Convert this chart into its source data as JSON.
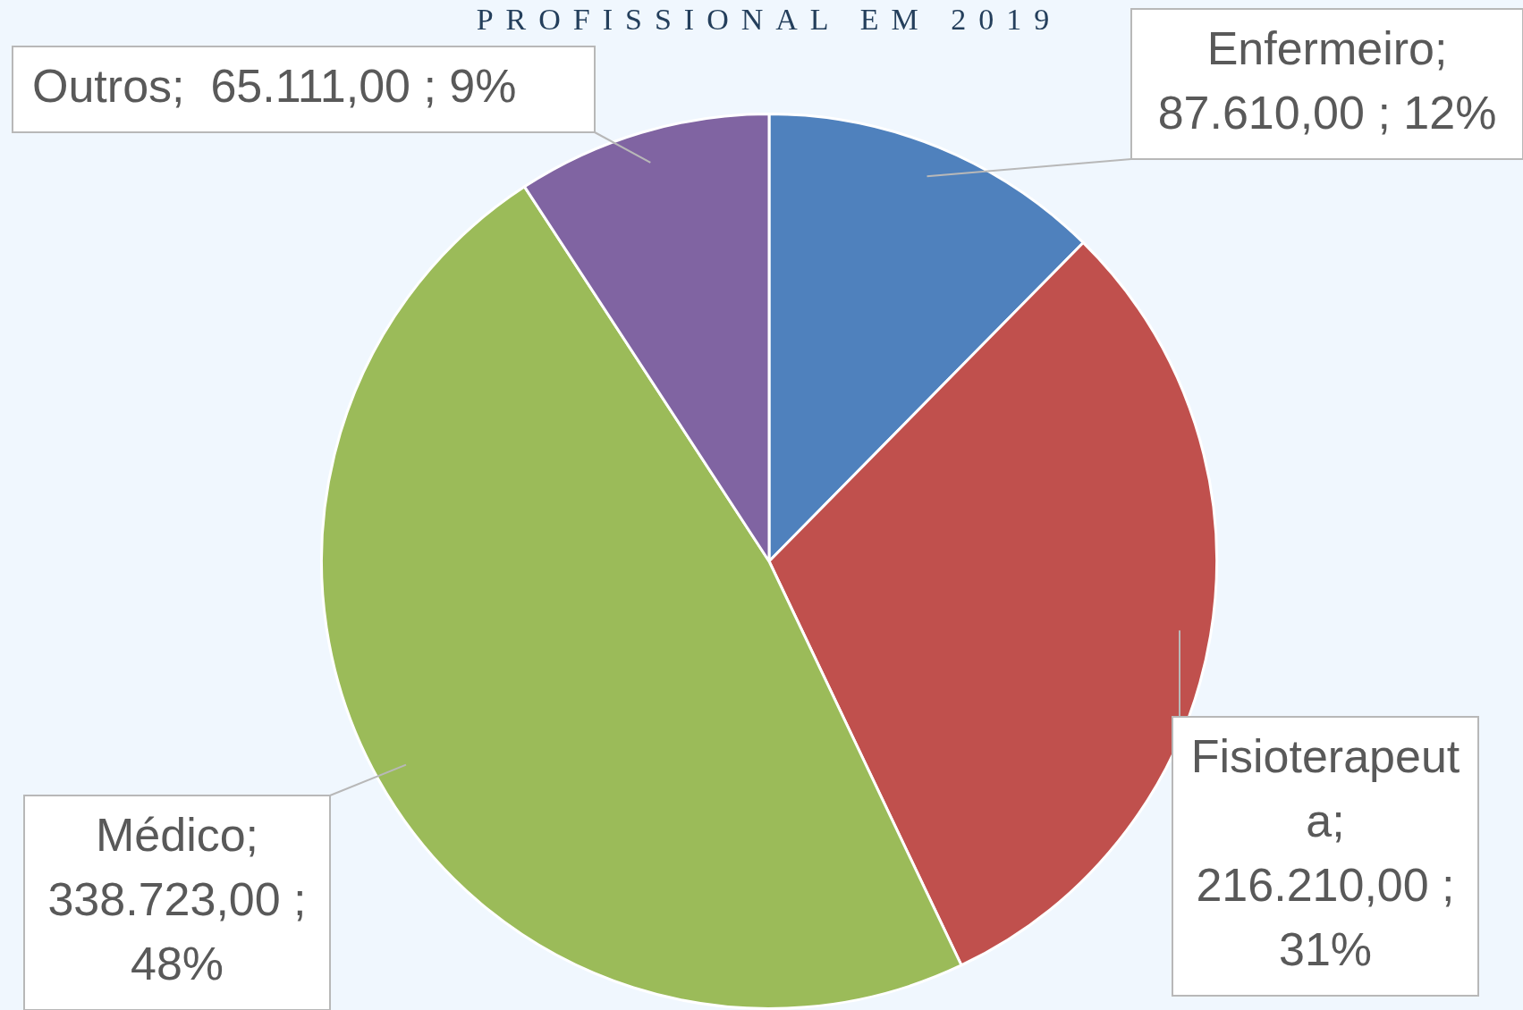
{
  "chart_data": {
    "type": "pie",
    "title": "PROFISSIONAL EM 2019",
    "categories": [
      "Enfermeiro",
      "Fisioterapeuta",
      "Médico",
      "Outros"
    ],
    "values": [
      87610,
      216210,
      338723,
      65111
    ],
    "colors": [
      "#4f81bd",
      "#c0504d",
      "#9bbb59",
      "#8064a2"
    ],
    "value_labels": [
      "; 87.610,00 ; 12%",
      "; 216.210,00 ; 31%",
      "; 338.723,00 ; 48%",
      ";  65.111,00 ; 9%"
    ]
  }
}
